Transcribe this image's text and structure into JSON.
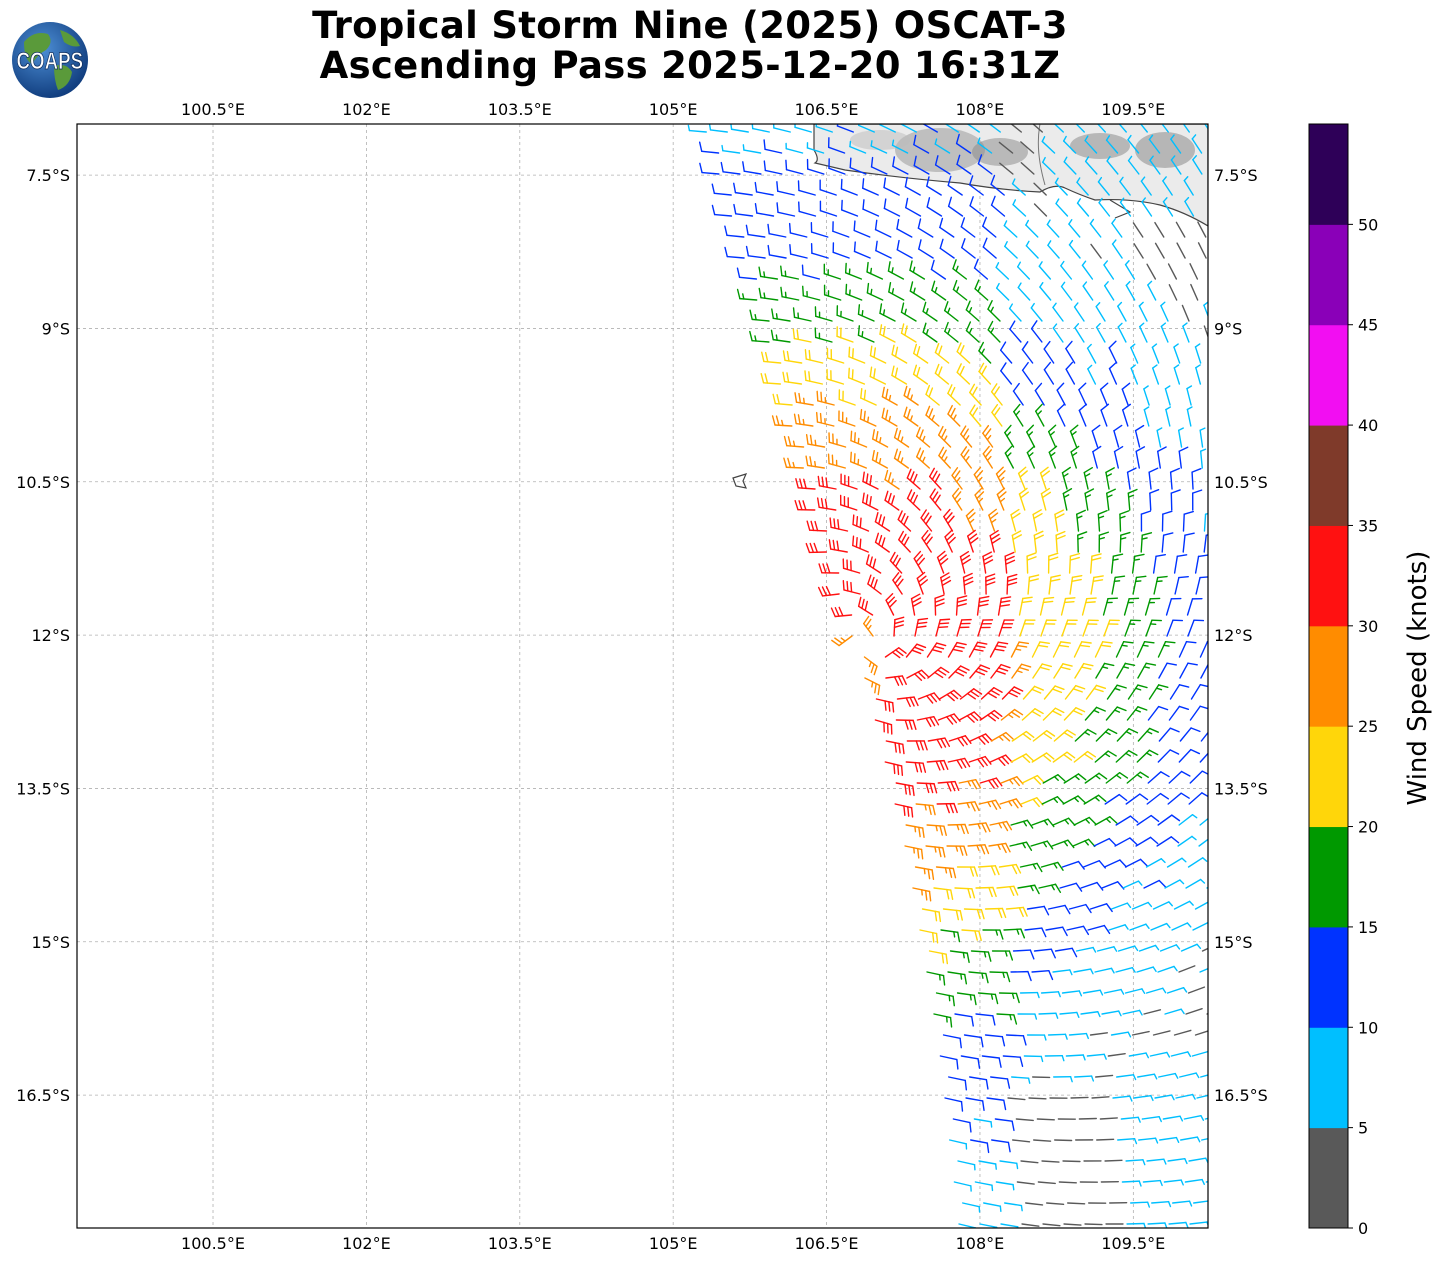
{
  "title": {
    "line1": "Tropical Storm Nine (2025) OSCAT-3",
    "line2": "Ascending Pass 2025-12-20 16:31Z"
  },
  "logo": {
    "text": "COAPS",
    "colors": {
      "ocean": "#1f5fae",
      "land": "#5a9a3a"
    }
  },
  "map": {
    "lon_range": [
      99.17,
      110.23
    ],
    "lat_range": [
      -17.8,
      -7.0
    ],
    "lon_ticks": [
      {
        "value": 100.5,
        "label": "100.5°E"
      },
      {
        "value": 102.0,
        "label": "102°E"
      },
      {
        "value": 103.5,
        "label": "103.5°E"
      },
      {
        "value": 105.0,
        "label": "105°E"
      },
      {
        "value": 106.5,
        "label": "106.5°E"
      },
      {
        "value": 108.0,
        "label": "108°E"
      },
      {
        "value": 109.5,
        "label": "109.5°E"
      }
    ],
    "lat_ticks": [
      {
        "value": -7.5,
        "label": "7.5°S"
      },
      {
        "value": -9.0,
        "label": "9°S"
      },
      {
        "value": -10.5,
        "label": "10.5°S"
      },
      {
        "value": -12.0,
        "label": "12°S"
      },
      {
        "value": -13.5,
        "label": "13.5°S"
      },
      {
        "value": -15.0,
        "label": "15°S"
      },
      {
        "value": -16.5,
        "label": "16.5°S"
      }
    ],
    "grid": true,
    "storm_center": {
      "lon": 106.9,
      "lat": -12.1
    },
    "swath_west_edge": [
      [
        105.3,
        -7.0
      ],
      [
        105.9,
        -9.0
      ],
      [
        106.5,
        -11.2
      ],
      [
        106.9,
        -12.5
      ],
      [
        107.3,
        -14.2
      ],
      [
        107.6,
        -16.0
      ],
      [
        107.8,
        -17.8
      ]
    ],
    "island_near": {
      "lon": 105.65,
      "lat": -10.5
    }
  },
  "colorbar": {
    "label": "Wind Speed (knots)",
    "levels": [
      0,
      5,
      10,
      15,
      20,
      25,
      30,
      35,
      40,
      45,
      50
    ],
    "colors": [
      "#595959",
      "#00bfff",
      "#0033ff",
      "#009900",
      "#ffd60a",
      "#ff8c00",
      "#ff1111",
      "#7f3a2a",
      "#f20ef2",
      "#8a00b8",
      "#2e0058"
    ],
    "tick_labels": [
      "0",
      "5",
      "10",
      "15",
      "20",
      "25",
      "30",
      "35",
      "40",
      "45",
      "50"
    ]
  }
}
